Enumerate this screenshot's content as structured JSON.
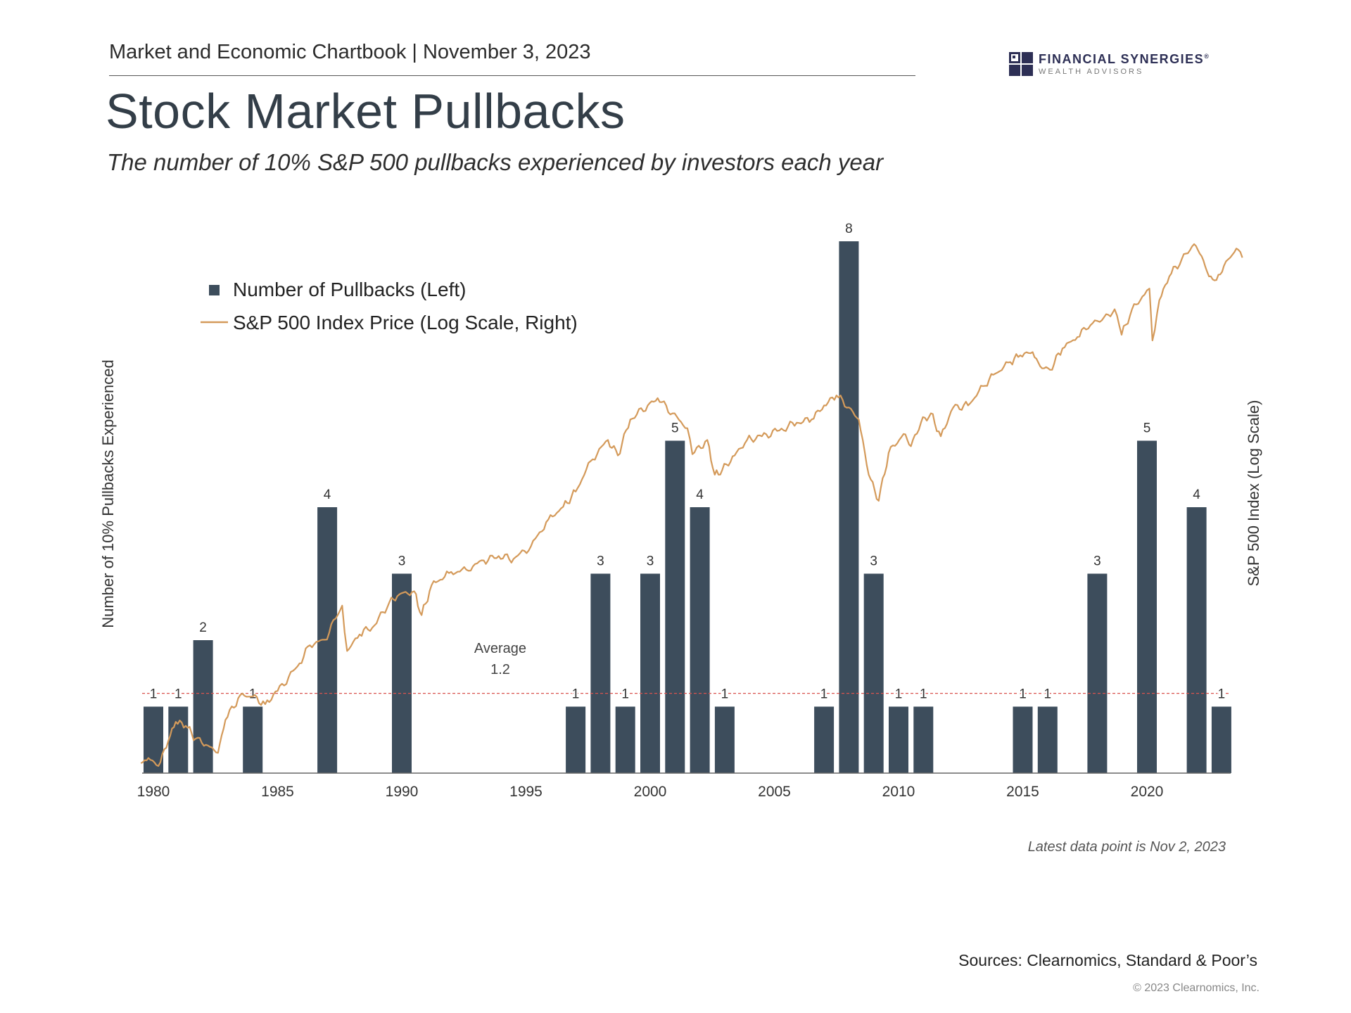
{
  "header": {
    "chartbook": "Market and Economic Chartbook | November 3, 2023",
    "title": "Stock Market Pullbacks",
    "subtitle": "The number of 10% S&P 500 pullbacks experienced by investors each year"
  },
  "logo": {
    "name": "FINANCIAL SYNERGIES",
    "mark": "®",
    "tagline": "WEALTH ADVISORS",
    "color": "#2d2f55"
  },
  "colors": {
    "bar": "#3d4d5c",
    "line": "#d49a5a",
    "average": "#d9534f",
    "axis": "#666666"
  },
  "chart_data": {
    "type": "bar",
    "ylabel_left": "Number of 10% Pullbacks Experienced",
    "ylabel_right": "S&P 500 Index (Log Scale)",
    "x_ticks": [
      "1980",
      "1985",
      "1990",
      "1995",
      "2000",
      "2005",
      "2010",
      "2015",
      "2020"
    ],
    "ylim_left": [
      0,
      8
    ],
    "series": [
      {
        "name": "Number of Pullbacks (Left)",
        "type": "bar",
        "data": [
          {
            "year": 1980,
            "value": 1
          },
          {
            "year": 1981,
            "value": 1
          },
          {
            "year": 1982,
            "value": 2
          },
          {
            "year": 1984,
            "value": 1
          },
          {
            "year": 1987,
            "value": 4
          },
          {
            "year": 1990,
            "value": 3
          },
          {
            "year": 1997,
            "value": 1
          },
          {
            "year": 1998,
            "value": 3
          },
          {
            "year": 1999,
            "value": 1
          },
          {
            "year": 2000,
            "value": 3
          },
          {
            "year": 2001,
            "value": 5
          },
          {
            "year": 2002,
            "value": 4
          },
          {
            "year": 2003,
            "value": 1
          },
          {
            "year": 2007,
            "value": 1
          },
          {
            "year": 2008,
            "value": 8
          },
          {
            "year": 2009,
            "value": 3
          },
          {
            "year": 2010,
            "value": 1
          },
          {
            "year": 2011,
            "value": 1
          },
          {
            "year": 2015,
            "value": 1
          },
          {
            "year": 2016,
            "value": 1
          },
          {
            "year": 2018,
            "value": 3
          },
          {
            "year": 2020,
            "value": 5
          },
          {
            "year": 2022,
            "value": 4
          },
          {
            "year": 2023,
            "value": 1
          }
        ]
      },
      {
        "name": "S&P 500 Index Price (Log Scale, Right)",
        "type": "line",
        "log_scale": true,
        "data": [
          [
            1979.5,
            100
          ],
          [
            1979.8,
            104
          ],
          [
            1980.2,
            98
          ],
          [
            1980.6,
            118
          ],
          [
            1980.9,
            136
          ],
          [
            1981.3,
            132
          ],
          [
            1981.7,
            120
          ],
          [
            1982.2,
            114
          ],
          [
            1982.6,
            108
          ],
          [
            1982.9,
            138
          ],
          [
            1983.5,
            166
          ],
          [
            1984.0,
            164
          ],
          [
            1984.5,
            155
          ],
          [
            1985.0,
            171
          ],
          [
            1985.8,
            205
          ],
          [
            1986.3,
            240
          ],
          [
            1986.9,
            250
          ],
          [
            1987.6,
            322
          ],
          [
            1987.8,
            230
          ],
          [
            1988.3,
            260
          ],
          [
            1988.9,
            278
          ],
          [
            1989.5,
            330
          ],
          [
            1989.9,
            350
          ],
          [
            1990.5,
            358
          ],
          [
            1990.8,
            300
          ],
          [
            1991.2,
            375
          ],
          [
            1991.9,
            410
          ],
          [
            1992.6,
            420
          ],
          [
            1993.3,
            450
          ],
          [
            1993.9,
            465
          ],
          [
            1994.5,
            455
          ],
          [
            1995.2,
            500
          ],
          [
            1995.9,
            610
          ],
          [
            1996.5,
            670
          ],
          [
            1997.0,
            750
          ],
          [
            1997.6,
            940
          ],
          [
            1998.3,
            1100
          ],
          [
            1998.7,
            980
          ],
          [
            1999.2,
            1280
          ],
          [
            1999.9,
            1420
          ],
          [
            2000.3,
            1500
          ],
          [
            2000.9,
            1340
          ],
          [
            2001.5,
            1200
          ],
          [
            2001.7,
            990
          ],
          [
            2002.3,
            1100
          ],
          [
            2002.6,
            850
          ],
          [
            2002.9,
            880
          ],
          [
            2003.4,
            980
          ],
          [
            2003.9,
            1100
          ],
          [
            2004.5,
            1130
          ],
          [
            2005.2,
            1180
          ],
          [
            2005.9,
            1250
          ],
          [
            2006.5,
            1280
          ],
          [
            2007.0,
            1420
          ],
          [
            2007.5,
            1530
          ],
          [
            2008.0,
            1400
          ],
          [
            2008.4,
            1280
          ],
          [
            2008.8,
            850
          ],
          [
            2009.2,
            700
          ],
          [
            2009.6,
            1000
          ],
          [
            2010.2,
            1150
          ],
          [
            2010.5,
            1050
          ],
          [
            2010.9,
            1250
          ],
          [
            2011.3,
            1340
          ],
          [
            2011.7,
            1130
          ],
          [
            2012.2,
            1400
          ],
          [
            2012.8,
            1420
          ],
          [
            2013.4,
            1640
          ],
          [
            2013.9,
            1800
          ],
          [
            2014.5,
            1960
          ],
          [
            2014.9,
            2060
          ],
          [
            2015.4,
            2110
          ],
          [
            2015.7,
            1900
          ],
          [
            2016.1,
            1850
          ],
          [
            2016.6,
            2170
          ],
          [
            2017.2,
            2360
          ],
          [
            2017.9,
            2670
          ],
          [
            2018.1,
            2640
          ],
          [
            2018.7,
            2900
          ],
          [
            2018.98,
            2400
          ],
          [
            2019.4,
            2900
          ],
          [
            2019.9,
            3230
          ],
          [
            2020.1,
            3380
          ],
          [
            2020.22,
            2300
          ],
          [
            2020.5,
            3100
          ],
          [
            2020.9,
            3700
          ],
          [
            2021.4,
            4200
          ],
          [
            2021.9,
            4700
          ],
          [
            2022.2,
            4300
          ],
          [
            2022.5,
            3700
          ],
          [
            2022.8,
            3600
          ],
          [
            2023.1,
            4000
          ],
          [
            2023.6,
            4550
          ],
          [
            2023.84,
            4250
          ]
        ]
      }
    ],
    "average": {
      "label": "Average",
      "value": 1.2,
      "value_text": "1.2"
    },
    "legend": {
      "placement": "top-left",
      "items": [
        "Number of Pullbacks (Left)",
        "S&P 500 Index Price (Log Scale, Right)"
      ]
    },
    "annotation": "Latest data point is Nov 2, 2023"
  },
  "footer": {
    "sources": "Sources: Clearnomics, Standard & Poor’s",
    "copyright": "© 2023 Clearnomics, Inc."
  }
}
